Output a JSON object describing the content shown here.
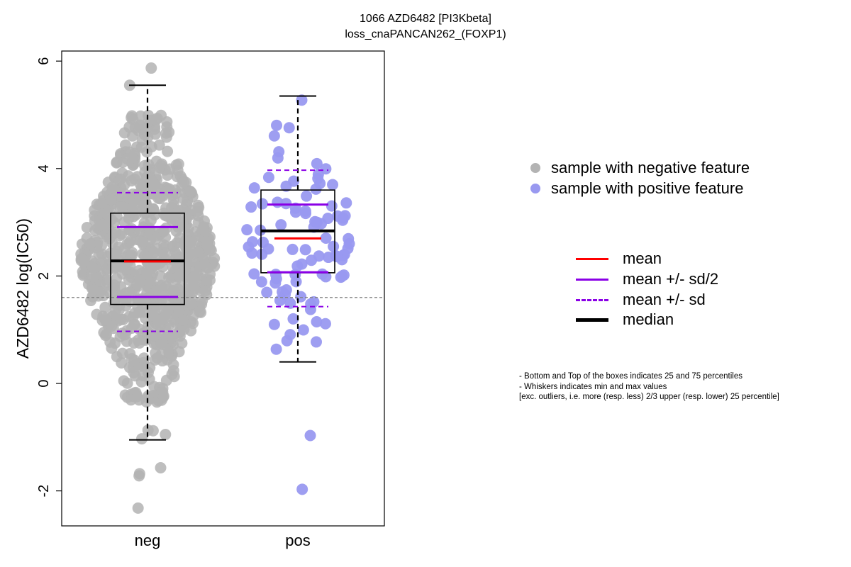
{
  "chart_data": {
    "type": "box",
    "title": "1066 AZD6482 [PI3Kbeta]",
    "subtitle": "loss_cnaPANCAN262_(FOXP1)",
    "ylabel": "AZD6482 log(IC50)",
    "xlabel": "",
    "ylim": [
      -2.6,
      6.2
    ],
    "yticks": [
      -2,
      0,
      2,
      4,
      6
    ],
    "ytick_labels": [
      "-2",
      "0",
      "2",
      "4",
      "6"
    ],
    "categories": [
      "neg",
      "pos"
    ],
    "reference_line": 1.6,
    "groups": [
      {
        "name": "neg",
        "color": "#b3b3b3",
        "n_points": 800,
        "q1": 1.47,
        "median": 2.28,
        "q3": 3.17,
        "mean": 2.27,
        "mean_minus_half_sd": 1.61,
        "mean_plus_half_sd": 2.91,
        "mean_minus_sd": 0.97,
        "mean_plus_sd": 3.55,
        "whisker_low": -1.05,
        "whisker_high": 5.55,
        "outliers": [
          5.87,
          5.55,
          -1.57,
          -1.72,
          -1.68,
          -2.32,
          -0.88,
          -0.87,
          -0.95,
          -1.03
        ],
        "points_range": [
          -0.35,
          5.0
        ]
      },
      {
        "name": "pos",
        "color": "#9999f0",
        "n_points": 95,
        "q1": 2.06,
        "median": 2.84,
        "q3": 3.6,
        "mean": 2.7,
        "mean_minus_half_sd": 2.07,
        "mean_plus_half_sd": 3.33,
        "mean_minus_sd": 1.43,
        "mean_plus_sd": 3.97,
        "whisker_low": 0.4,
        "whisker_high": 5.35,
        "outliers": [
          -0.97,
          -1.97
        ],
        "points_range": [
          0.4,
          5.35
        ]
      }
    ],
    "legend": {
      "points": [
        {
          "label": "sample with negative feature",
          "color": "#b3b3b3"
        },
        {
          "label": "sample with positive feature",
          "color": "#9999f0"
        }
      ],
      "lines": [
        {
          "label": "mean",
          "color": "#ff0000",
          "style": "solid"
        },
        {
          "label": "mean +/- sd/2",
          "color": "#8a00e6",
          "style": "solid"
        },
        {
          "label": "mean +/- sd",
          "color": "#8a00e6",
          "style": "dashed"
        },
        {
          "label": "median",
          "color": "#000000",
          "style": "solid-thick"
        }
      ]
    },
    "notes": [
      "- Bottom and Top of the boxes indicates 25 and 75 percentiles",
      "- Whiskers indicates min and max values",
      "[exc. outliers, i.e. more (resp. less) 2/3 upper (resp. lower) 25 percentile]"
    ]
  }
}
